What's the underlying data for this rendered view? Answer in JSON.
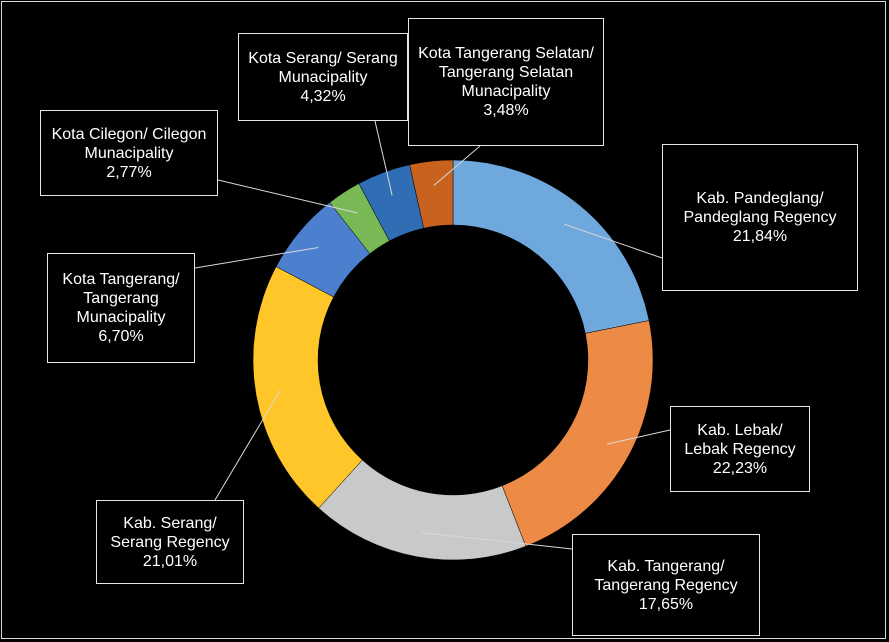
{
  "chart_data": {
    "type": "donut",
    "categories": [
      "Kab. Pandeglang/ Pandeglang Regency",
      "Kab. Lebak/ Lebak Regency",
      "Kab. Tangerang/ Tangerang Regency",
      "Kab. Serang/ Serang Regency",
      "Kota Tangerang/ Tangerang Munacipality",
      "Kota Cilegon/ Cilegon Munacipality",
      "Kota Serang/ Serang Munacipality",
      "Kota Tangerang Selatan/ Tangerang Selatan Munacipality"
    ],
    "values": [
      21.84,
      22.23,
      17.65,
      21.01,
      6.7,
      2.77,
      4.32,
      3.48
    ],
    "value_labels": [
      "21,84%",
      "22,23%",
      "17,65%",
      "21,01%",
      "6,70%",
      "2,77%",
      "4,32%",
      "3,48%"
    ],
    "colors": [
      "#6fa8dc",
      "#ed8a45",
      "#c9c9c9",
      "#ffc629",
      "#4d7fcf",
      "#78b956",
      "#2f6db4",
      "#c9621e"
    ]
  }
}
